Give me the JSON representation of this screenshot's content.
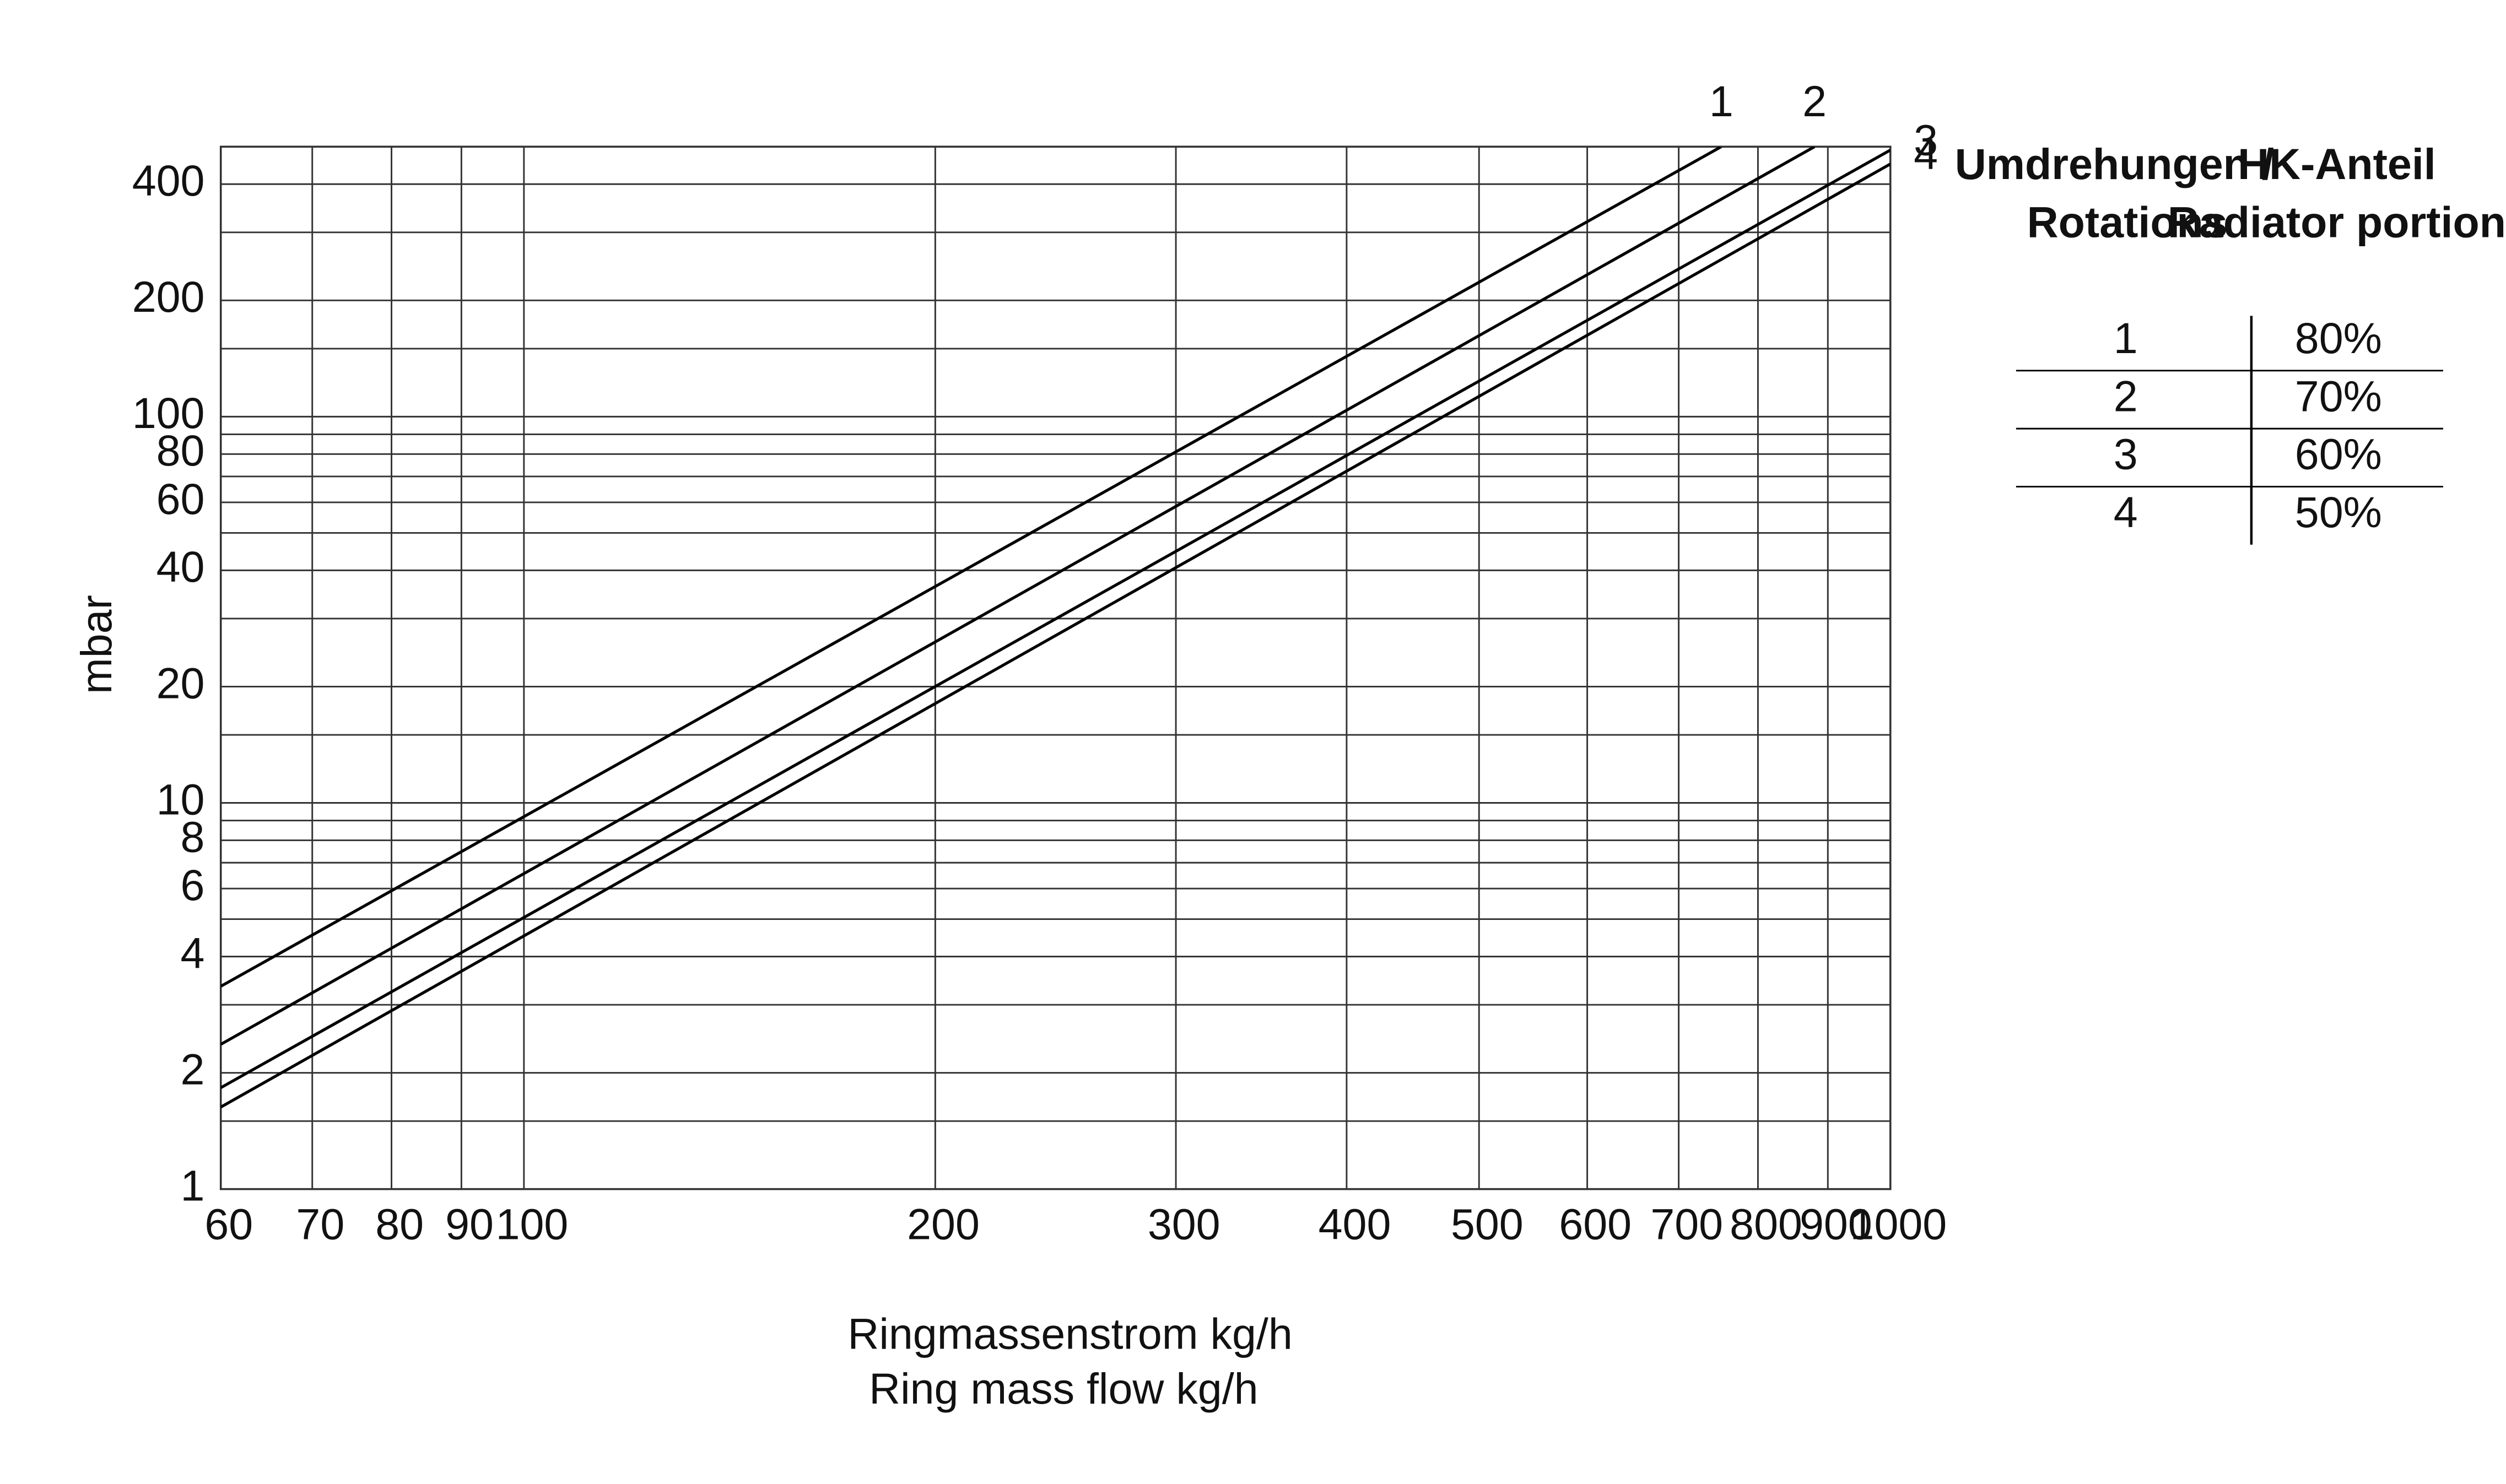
{
  "chart_data": {
    "type": "line",
    "x_label": [
      "Ringmassenstrom  kg/h",
      "Ring mass flow kg/h"
    ],
    "y_label": "mbar",
    "log_x": true,
    "log_y": true,
    "grid": true,
    "xlim": [
      60,
      1000
    ],
    "xticks": [
      60,
      70,
      80,
      90,
      100,
      200,
      300,
      400,
      500,
      600,
      700,
      800,
      900,
      1000
    ],
    "ylim": [
      1,
      500
    ],
    "yticks": [
      1,
      2,
      4,
      6,
      8,
      10,
      20,
      40,
      60,
      80,
      100,
      200,
      400
    ],
    "y_minor_ticks": [
      1.5,
      3,
      5,
      7,
      9,
      15,
      30,
      50,
      70,
      90,
      150,
      300,
      500
    ],
    "series": [
      {
        "name": "1",
        "color": "#000000",
        "x": [
          60,
          752
        ],
        "values": [
          3.35,
          500
        ]
      },
      {
        "name": "2",
        "color": "#000000",
        "x": [
          60,
          880
        ],
        "values": [
          2.37,
          500
        ]
      },
      {
        "name": "3",
        "color": "#000000",
        "x": [
          60,
          1000
        ],
        "values": [
          1.83,
          490
        ]
      },
      {
        "name": "4",
        "color": "#000000",
        "x": [
          60,
          1000
        ],
        "values": [
          1.63,
          451
        ]
      }
    ]
  },
  "legend_table": {
    "headers": [
      [
        "Umdrehungen /",
        "HK-Anteil"
      ],
      [
        "Rotations",
        "Radiator portion"
      ]
    ],
    "rows": [
      [
        "1",
        "80%"
      ],
      [
        "2",
        "70%"
      ],
      [
        "3",
        "60%"
      ],
      [
        "4",
        "50%"
      ]
    ]
  }
}
